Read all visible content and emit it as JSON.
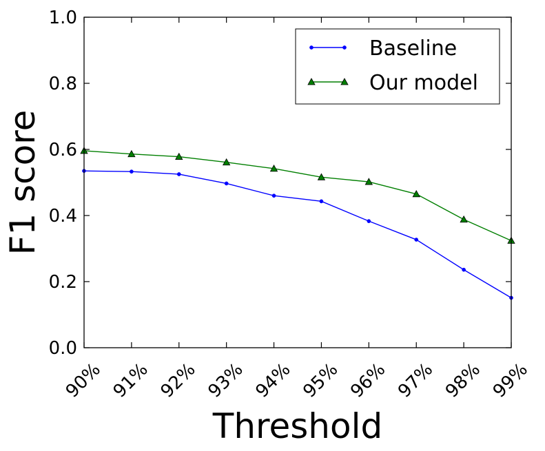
{
  "chart_data": {
    "type": "line",
    "xlabel": "Threshold",
    "ylabel": "F1 score",
    "categories": [
      "90%",
      "91%",
      "92%",
      "93%",
      "94%",
      "95%",
      "96%",
      "97%",
      "98%",
      "99%"
    ],
    "ylim": [
      0.0,
      1.0
    ],
    "yticks": [
      "0.0",
      "0.2",
      "0.4",
      "0.6",
      "0.8",
      "1.0"
    ],
    "grid": false,
    "legend_position": "top-right",
    "series": [
      {
        "name": "Baseline",
        "color": "#0000ff",
        "marker": "circle",
        "values": [
          0.535,
          0.533,
          0.525,
          0.497,
          0.46,
          0.443,
          0.383,
          0.327,
          0.236,
          0.151
        ]
      },
      {
        "name": "Our model",
        "color": "#007f00",
        "marker": "triangle",
        "values": [
          0.596,
          0.586,
          0.578,
          0.561,
          0.542,
          0.516,
          0.502,
          0.465,
          0.388,
          0.324
        ]
      }
    ]
  }
}
